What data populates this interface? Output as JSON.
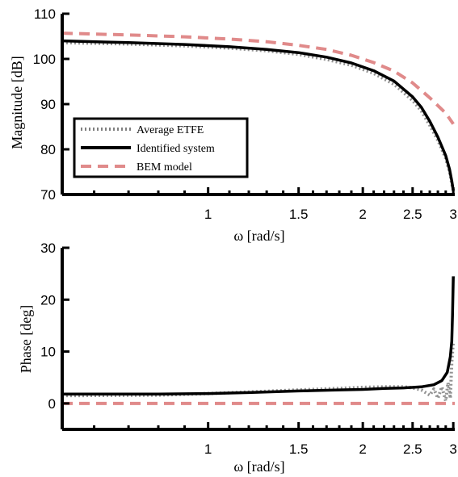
{
  "chart_data": [
    {
      "type": "line",
      "xlabel": "ω [rad/s]",
      "ylabel": "Magnitude [dB]",
      "xscale": "log",
      "xlim": [
        0.52,
        3.02
      ],
      "ylim": [
        70,
        110
      ],
      "xticks": [
        1,
        1.5,
        2,
        2.5,
        3
      ],
      "xtick_labels": [
        "1",
        "1.5",
        "2",
        "2.5",
        "3"
      ],
      "yticks": [
        70,
        80,
        90,
        100,
        110
      ],
      "ytick_labels": [
        "70",
        "80",
        "90",
        "100",
        "110"
      ],
      "grid": false,
      "legend_position": "bottom-left",
      "series": [
        {
          "name": "Average ETFE",
          "color": "#7f7f7f",
          "style": "dotted",
          "x": [
            0.52,
            0.7,
            0.9,
            1.1,
            1.3,
            1.5,
            1.7,
            1.9,
            2.1,
            2.3,
            2.5,
            2.6,
            2.7,
            2.8,
            2.9,
            2.95,
            2.98,
            3.0
          ],
          "y": [
            103.6,
            103.3,
            102.9,
            102.4,
            101.8,
            101.0,
            99.9,
            98.6,
            96.8,
            94.4,
            90.8,
            88.5,
            85.3,
            82.0,
            78.0,
            75.0,
            72.5,
            71.0
          ]
        },
        {
          "name": "Identified system",
          "color": "#000000",
          "style": "solid",
          "x": [
            0.52,
            0.7,
            0.9,
            1.1,
            1.3,
            1.5,
            1.7,
            1.9,
            2.1,
            2.3,
            2.5,
            2.6,
            2.7,
            2.8,
            2.9,
            2.95,
            2.98,
            3.0
          ],
          "y": [
            104.0,
            103.6,
            103.2,
            102.7,
            102.1,
            101.4,
            100.4,
            99.1,
            97.4,
            95.1,
            91.6,
            89.3,
            86.2,
            82.7,
            78.6,
            75.6,
            73.0,
            70.8
          ]
        },
        {
          "name": "BEM model",
          "color": "#e08a8a",
          "style": "dashed",
          "x": [
            0.52,
            0.7,
            0.9,
            1.1,
            1.3,
            1.5,
            1.7,
            1.9,
            2.1,
            2.3,
            2.5,
            2.7,
            2.9,
            3.0
          ],
          "y": [
            105.7,
            105.3,
            104.9,
            104.4,
            103.8,
            103.0,
            102.1,
            100.8,
            99.2,
            97.3,
            94.7,
            91.4,
            88.0,
            85.6
          ]
        }
      ]
    },
    {
      "type": "line",
      "xlabel": "ω [rad/s]",
      "ylabel": "Phase [deg]",
      "xscale": "log",
      "xlim": [
        0.52,
        3.02
      ],
      "ylim": [
        -5,
        30
      ],
      "xticks": [
        1,
        1.5,
        2,
        2.5,
        3
      ],
      "xtick_labels": [
        "1",
        "1.5",
        "2",
        "2.5",
        "3"
      ],
      "yticks": [
        0,
        10,
        20,
        30
      ],
      "ytick_labels": [
        "0",
        "10",
        "20",
        "30"
      ],
      "grid": false,
      "series": [
        {
          "name": "Average ETFE",
          "color": "#7f7f7f",
          "style": "dotted",
          "x": [
            0.52,
            0.8,
            1.0,
            1.2,
            1.5,
            1.8,
            2.0,
            2.2,
            2.4,
            2.5,
            2.6,
            2.7,
            2.75,
            2.8,
            2.85,
            2.9,
            2.93,
            2.96,
            2.98,
            3.0
          ],
          "y": [
            1.5,
            1.6,
            1.9,
            2.2,
            2.6,
            2.9,
            3.1,
            3.2,
            3.2,
            3.0,
            2.6,
            1.6,
            2.8,
            1.0,
            3.2,
            0.5,
            4.0,
            1.0,
            8.0,
            12.0
          ]
        },
        {
          "name": "Identified system",
          "color": "#000000",
          "style": "solid",
          "x": [
            0.52,
            0.8,
            1.0,
            1.2,
            1.5,
            1.8,
            2.0,
            2.2,
            2.4,
            2.6,
            2.75,
            2.85,
            2.92,
            2.96,
            2.98,
            2.99,
            3.0
          ],
          "y": [
            1.8,
            1.8,
            1.9,
            2.1,
            2.4,
            2.6,
            2.7,
            2.9,
            3.0,
            3.2,
            3.6,
            4.4,
            6.0,
            9.0,
            12.0,
            17.0,
            24.5
          ]
        },
        {
          "name": "BEM model",
          "color": "#e08a8a",
          "style": "dashed",
          "x": [
            0.52,
            3.02
          ],
          "y": [
            0,
            0
          ]
        }
      ]
    }
  ]
}
